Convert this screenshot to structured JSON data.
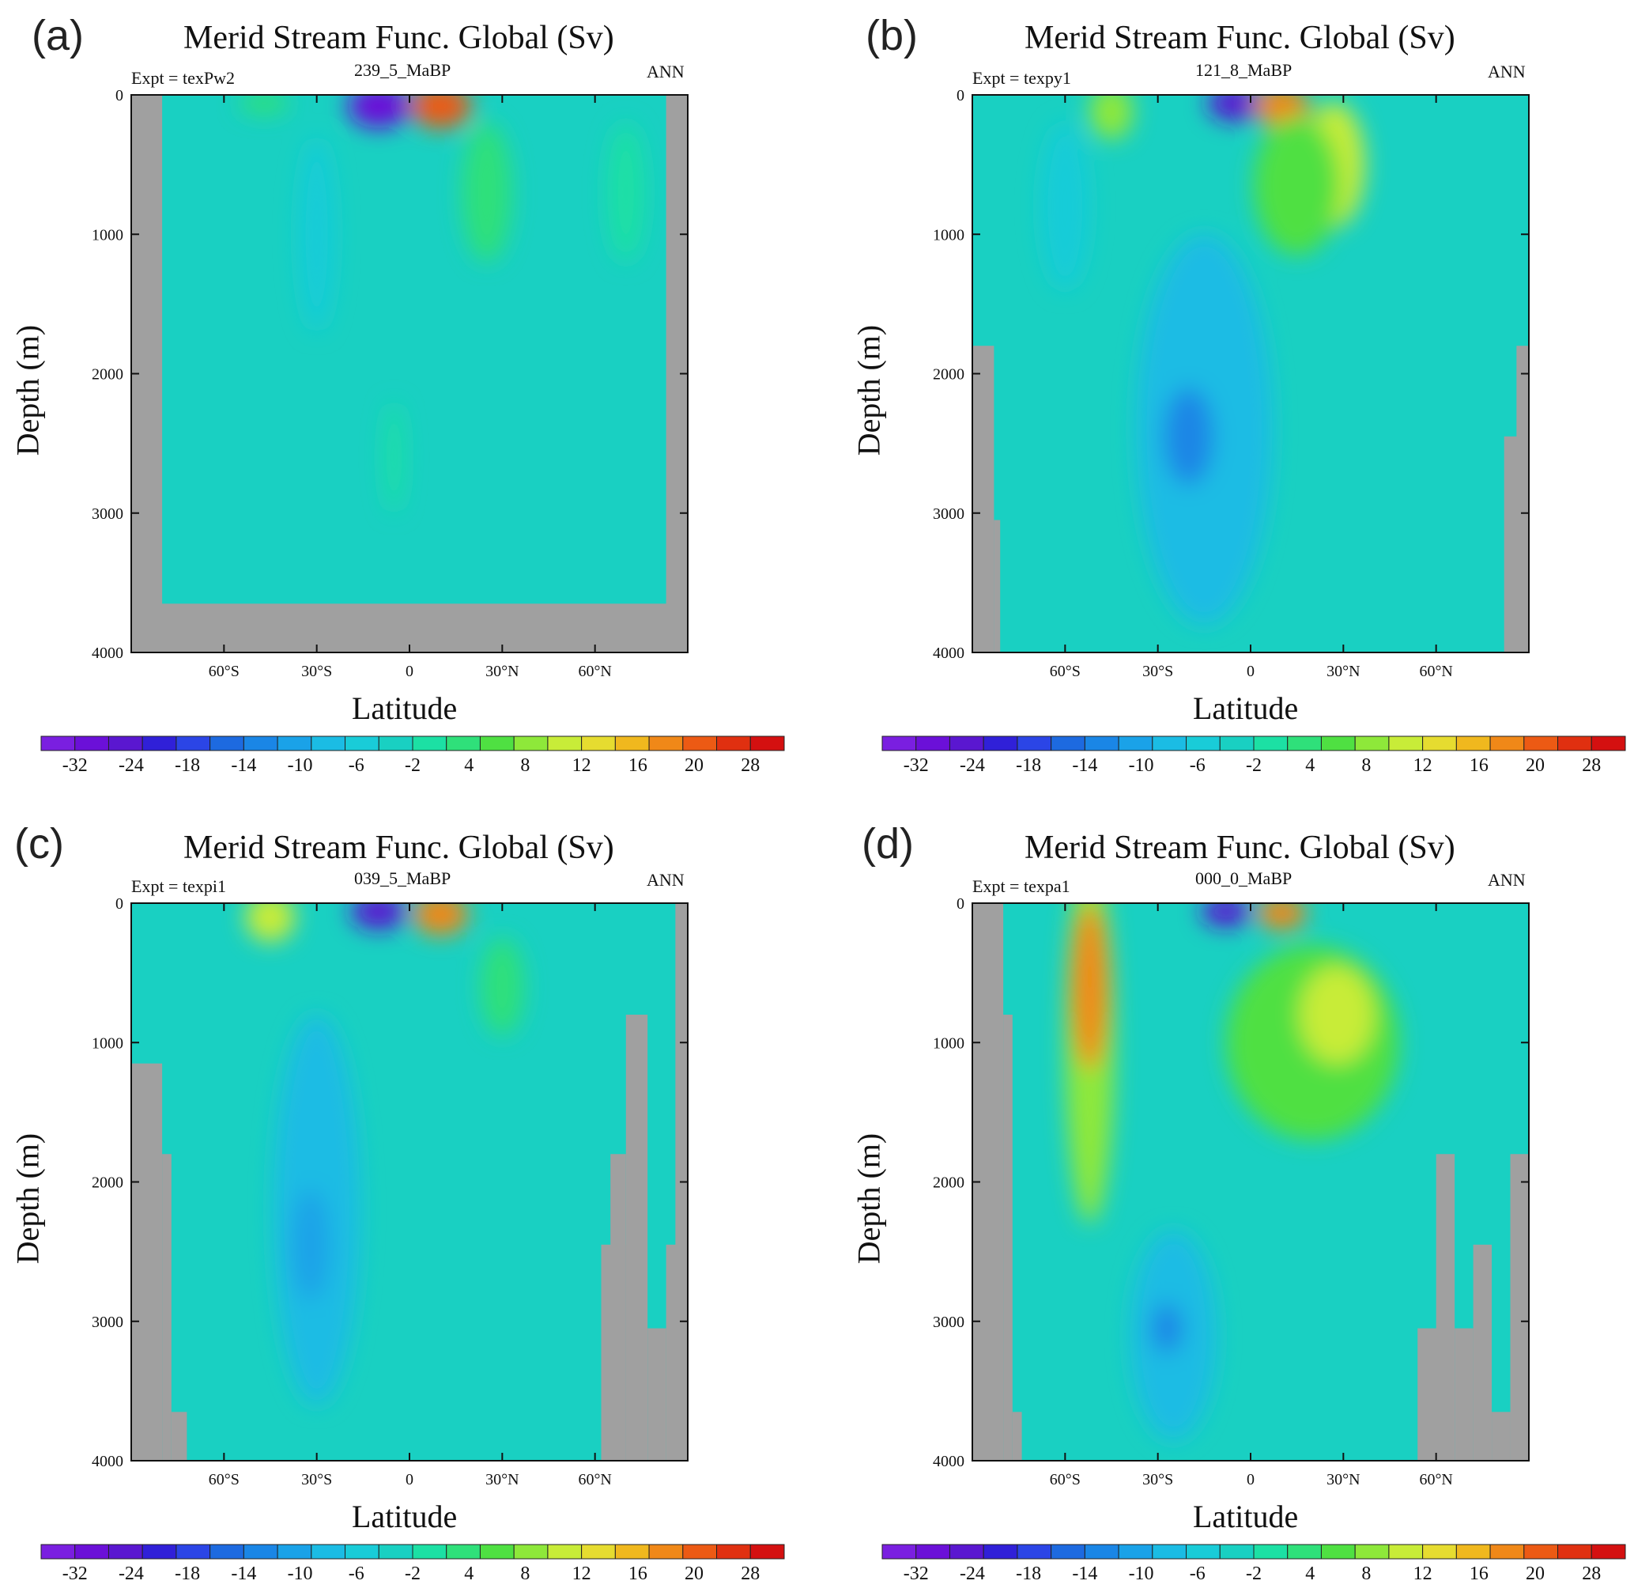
{
  "colors": {
    "land": "#a0a0a0",
    "background_ocean": "#19d0c2",
    "palette": [
      "#7a1fe0",
      "#6b10d8",
      "#5a17d0",
      "#3020d8",
      "#2b45e6",
      "#1d6ae0",
      "#1a86e6",
      "#1aa2e8",
      "#1bbce4",
      "#19ccd8",
      "#19d0c2",
      "#1ce0a4",
      "#2fe07a",
      "#4fe042",
      "#8ee83a",
      "#c8ec38",
      "#e6dc30",
      "#f0b81e",
      "#f08818",
      "#ec5a14",
      "#e03010",
      "#d41010"
    ]
  },
  "colorbar": {
    "tick_labels": [
      "-32",
      "-24",
      "-18",
      "-14",
      "-10",
      "-6",
      "-2",
      "4",
      "8",
      "12",
      "16",
      "20",
      "28"
    ]
  },
  "chart_data": [
    {
      "type": "heatmap",
      "panel": "(a)",
      "title": "Merid Stream Func. Global (Sv)",
      "expt": "Expt = texPw2",
      "subtitle": "239_5_MaBP",
      "season": "ANN",
      "xlabel": "Latitude",
      "ylabel": "Depth (m)",
      "xlim": [
        -90,
        90
      ],
      "ylim": [
        4000,
        0
      ],
      "x_ticks": [
        {
          "v": -60,
          "label": "60°S"
        },
        {
          "v": -30,
          "label": "30°S"
        },
        {
          "v": 0,
          "label": "0"
        },
        {
          "v": 30,
          "label": "30°N"
        },
        {
          "v": 60,
          "label": "60°N"
        }
      ],
      "y_ticks": [
        {
          "v": 0,
          "label": "0"
        },
        {
          "v": 1000,
          "label": "1000"
        },
        {
          "v": 2000,
          "label": "2000"
        },
        {
          "v": 3000,
          "label": "3000"
        },
        {
          "v": 4000,
          "label": "4000"
        }
      ],
      "features": [
        {
          "lat": -10,
          "depth": 80,
          "rlat": 10,
          "rdepth": 160,
          "value": -32
        },
        {
          "lat": 10,
          "depth": 80,
          "rlat": 10,
          "rdepth": 160,
          "value": 28
        },
        {
          "lat": 25,
          "depth": 700,
          "rlat": 8,
          "rdepth": 500,
          "value": 6
        },
        {
          "lat": 70,
          "depth": 700,
          "rlat": 6,
          "rdepth": 500,
          "value": 2
        },
        {
          "lat": -47,
          "depth": 60,
          "rlat": 8,
          "rdepth": 80,
          "value": 4
        },
        {
          "lat": -30,
          "depth": 1000,
          "rlat": 6,
          "rdepth": 700,
          "value": -4
        },
        {
          "lat": -5,
          "depth": 2600,
          "rlat": 3,
          "rdepth": 400,
          "value": 3
        }
      ],
      "land": [
        {
          "lat0": -90,
          "lat1": -80,
          "d0": 0,
          "d1": 4000
        },
        {
          "lat0": -90,
          "lat1": 90,
          "d0": 3650,
          "d1": 4000
        },
        {
          "lat0": 83,
          "lat1": 90,
          "d0": 0,
          "d1": 4000
        }
      ]
    },
    {
      "type": "heatmap",
      "panel": "(b)",
      "title": "Merid Stream Func. Global (Sv)",
      "expt": "Expt = texpy1",
      "subtitle": "121_8_MaBP",
      "season": "ANN",
      "xlabel": "Latitude",
      "ylabel": "Depth (m)",
      "xlim": [
        -90,
        90
      ],
      "ylim": [
        4000,
        0
      ],
      "x_ticks": [
        {
          "v": -60,
          "label": "60°S"
        },
        {
          "v": -30,
          "label": "30°S"
        },
        {
          "v": 0,
          "label": "0"
        },
        {
          "v": 30,
          "label": "30°N"
        },
        {
          "v": 60,
          "label": "60°N"
        }
      ],
      "y_ticks": [
        {
          "v": 0,
          "label": "0"
        },
        {
          "v": 1000,
          "label": "1000"
        },
        {
          "v": 2000,
          "label": "2000"
        },
        {
          "v": 3000,
          "label": "3000"
        },
        {
          "v": 4000,
          "label": "4000"
        }
      ],
      "features": [
        {
          "lat": -15,
          "depth": 2400,
          "rlat": 22,
          "rdepth": 1400,
          "value": -10
        },
        {
          "lat": -20,
          "depth": 2450,
          "rlat": 8,
          "rdepth": 350,
          "value": -14
        },
        {
          "lat": -5,
          "depth": 60,
          "rlat": 9,
          "rdepth": 130,
          "value": -28
        },
        {
          "lat": 10,
          "depth": 80,
          "rlat": 9,
          "rdepth": 150,
          "value": 24
        },
        {
          "lat": 27,
          "depth": 500,
          "rlat": 10,
          "rdepth": 450,
          "value": 14
        },
        {
          "lat": 15,
          "depth": 650,
          "rlat": 14,
          "rdepth": 500,
          "value": 8
        },
        {
          "lat": -45,
          "depth": 120,
          "rlat": 7,
          "rdepth": 200,
          "value": 12
        },
        {
          "lat": -60,
          "depth": 800,
          "rlat": 8,
          "rdepth": 600,
          "value": -4
        }
      ],
      "land": [
        {
          "lat0": -90,
          "lat1": -83,
          "d0": 1800,
          "d1": 4000
        },
        {
          "lat0": -83,
          "lat1": -81,
          "d0": 3050,
          "d1": 4000
        },
        {
          "lat0": 82,
          "lat1": 90,
          "d0": 2450,
          "d1": 4000
        },
        {
          "lat0": 86,
          "lat1": 90,
          "d0": 1800,
          "d1": 4000
        }
      ]
    },
    {
      "type": "heatmap",
      "panel": "(c)",
      "title": "Merid Stream Func. Global (Sv)",
      "expt": "Expt = texpi1",
      "subtitle": "039_5_MaBP",
      "season": "ANN",
      "xlabel": "Latitude",
      "ylabel": "Depth (m)",
      "xlim": [
        -90,
        90
      ],
      "ylim": [
        4000,
        0
      ],
      "x_ticks": [
        {
          "v": -60,
          "label": "60°S"
        },
        {
          "v": -30,
          "label": "30°S"
        },
        {
          "v": 0,
          "label": "0"
        },
        {
          "v": 30,
          "label": "30°N"
        },
        {
          "v": 60,
          "label": "60°N"
        }
      ],
      "y_ticks": [
        {
          "v": 0,
          "label": "0"
        },
        {
          "v": 1000,
          "label": "1000"
        },
        {
          "v": 2000,
          "label": "2000"
        },
        {
          "v": 3000,
          "label": "3000"
        },
        {
          "v": 4000,
          "label": "4000"
        }
      ],
      "features": [
        {
          "lat": -30,
          "depth": 2200,
          "rlat": 14,
          "rdepth": 1400,
          "value": -8
        },
        {
          "lat": -32,
          "depth": 2450,
          "rlat": 6,
          "rdepth": 400,
          "value": -12
        },
        {
          "lat": -10,
          "depth": 60,
          "rlat": 9,
          "rdepth": 130,
          "value": -30
        },
        {
          "lat": 10,
          "depth": 80,
          "rlat": 9,
          "rdepth": 150,
          "value": 24
        },
        {
          "lat": -45,
          "depth": 100,
          "rlat": 8,
          "rdepth": 180,
          "value": 14
        },
        {
          "lat": 30,
          "depth": 600,
          "rlat": 7,
          "rdepth": 350,
          "value": 6
        }
      ],
      "land": [
        {
          "lat0": -90,
          "lat1": -80,
          "d0": 1150,
          "d1": 4000
        },
        {
          "lat0": -80,
          "lat1": -77,
          "d0": 1800,
          "d1": 4000
        },
        {
          "lat0": -77,
          "lat1": -72,
          "d0": 3650,
          "d1": 4000
        },
        {
          "lat0": 62,
          "lat1": 70,
          "d0": 2450,
          "d1": 4000
        },
        {
          "lat0": 65,
          "lat1": 70,
          "d0": 1800,
          "d1": 4000
        },
        {
          "lat0": 70,
          "lat1": 77,
          "d0": 800,
          "d1": 4000
        },
        {
          "lat0": 77,
          "lat1": 83,
          "d0": 3050,
          "d1": 4000
        },
        {
          "lat0": 83,
          "lat1": 90,
          "d0": 2450,
          "d1": 4000
        },
        {
          "lat0": 86,
          "lat1": 90,
          "d0": 0,
          "d1": 4000
        }
      ]
    },
    {
      "type": "heatmap",
      "panel": "(d)",
      "title": "Merid Stream Func. Global (Sv)",
      "expt": "Expt = texpa1",
      "subtitle": "000_0_MaBP",
      "season": "ANN",
      "xlabel": "Latitude",
      "ylabel": "Depth (m)",
      "xlim": [
        -90,
        90
      ],
      "ylim": [
        4000,
        0
      ],
      "x_ticks": [
        {
          "v": -60,
          "label": "60°S"
        },
        {
          "v": -30,
          "label": "30°S"
        },
        {
          "v": 0,
          "label": "0"
        },
        {
          "v": 30,
          "label": "30°N"
        },
        {
          "v": 60,
          "label": "60°N"
        }
      ],
      "y_ticks": [
        {
          "v": 0,
          "label": "0"
        },
        {
          "v": 1000,
          "label": "1000"
        },
        {
          "v": 2000,
          "label": "2000"
        },
        {
          "v": 3000,
          "label": "3000"
        },
        {
          "v": 4000,
          "label": "4000"
        }
      ],
      "features": [
        {
          "lat": -52,
          "depth": 1000,
          "rlat": 8,
          "rdepth": 1300,
          "value": 12
        },
        {
          "lat": -52,
          "depth": 600,
          "rlat": 6,
          "rdepth": 600,
          "value": 24
        },
        {
          "lat": 20,
          "depth": 1000,
          "rlat": 28,
          "rdepth": 700,
          "value": 8
        },
        {
          "lat": 28,
          "depth": 800,
          "rlat": 12,
          "rdepth": 350,
          "value": 16
        },
        {
          "lat": -25,
          "depth": 3100,
          "rlat": 14,
          "rdepth": 750,
          "value": -10
        },
        {
          "lat": -27,
          "depth": 3050,
          "rlat": 5,
          "rdepth": 180,
          "value": -14
        },
        {
          "lat": -8,
          "depth": 60,
          "rlat": 8,
          "rdepth": 110,
          "value": -30
        },
        {
          "lat": 10,
          "depth": 70,
          "rlat": 8,
          "rdepth": 120,
          "value": 24
        }
      ],
      "land": [
        {
          "lat0": -90,
          "lat1": -80,
          "d0": 0,
          "d1": 4000
        },
        {
          "lat0": -80,
          "lat1": -77,
          "d0": 800,
          "d1": 4000
        },
        {
          "lat0": -77,
          "lat1": -74,
          "d0": 3650,
          "d1": 4000
        },
        {
          "lat0": 54,
          "lat1": 62,
          "d0": 3050,
          "d1": 4000
        },
        {
          "lat0": 60,
          "lat1": 66,
          "d0": 1800,
          "d1": 4000
        },
        {
          "lat0": 66,
          "lat1": 72,
          "d0": 3050,
          "d1": 4000
        },
        {
          "lat0": 72,
          "lat1": 78,
          "d0": 2450,
          "d1": 4000
        },
        {
          "lat0": 78,
          "lat1": 84,
          "d0": 3650,
          "d1": 4000
        },
        {
          "lat0": 84,
          "lat1": 90,
          "d0": 1800,
          "d1": 4000
        }
      ]
    }
  ]
}
